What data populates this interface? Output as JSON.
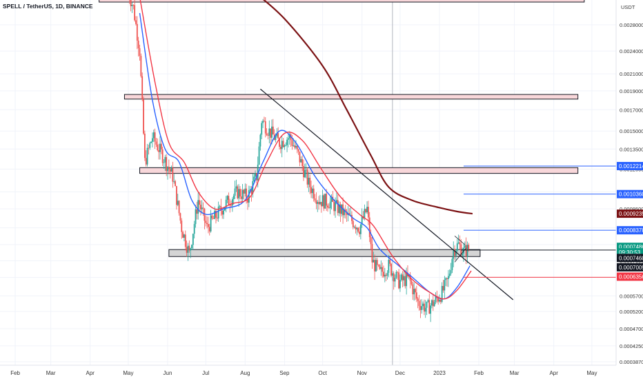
{
  "header": {
    "symbol_line": "SPELL / TetherUS, 1D, BINANCE"
  },
  "axis": {
    "currency": "USDT",
    "scale": "log"
  },
  "colors": {
    "candle_up": "#26a69a",
    "candle_down": "#ef5350",
    "ema_fast": "#2962ff",
    "ema_slow": "#f23645",
    "ma_long": "#7b1113",
    "trendline": "#131722",
    "zone_fill": "#f8d7da",
    "zone_grey": "#d5d5d5",
    "level_blue": "#2962ff",
    "level_red": "#f23645"
  },
  "chart_data": {
    "type": "line",
    "title": "SPELL / TetherUS, 1D, BINANCE",
    "x_labels": [
      "Feb",
      "Mar",
      "Apr",
      "May",
      "Jun",
      "Jul",
      "Aug",
      "Sep",
      "Oct",
      "Nov",
      "Dec",
      "2023",
      "Feb",
      "Mar",
      "Apr",
      "May"
    ],
    "y_ticks": [
      "0.0028000",
      "0.0024000",
      "0.0021000",
      "0.0019000",
      "0.0017000",
      "0.0015000",
      "0.0013500",
      "0.0012000",
      "0.0010500",
      "0.0009500",
      "0.0008500",
      "0.0007700",
      "0.0007000",
      "0.0006350",
      "0.0005700",
      "0.0005200",
      "0.0004700",
      "0.0004250",
      "0.0003870"
    ],
    "ylim": [
      0.00037,
      0.0034
    ],
    "grid": true,
    "series": [
      {
        "kind": "price_approx",
        "x": [
          "2022-05-01",
          "2022-05-05",
          "2022-05-10",
          "2022-05-14",
          "2022-05-20",
          "2022-05-28",
          "2022-06-05",
          "2022-06-12",
          "2022-06-18",
          "2022-06-25",
          "2022-07-02",
          "2022-07-10",
          "2022-07-18",
          "2022-07-26",
          "2022-08-03",
          "2022-08-10",
          "2022-08-14",
          "2022-08-20",
          "2022-08-28",
          "2022-09-05",
          "2022-09-12",
          "2022-09-20",
          "2022-09-28",
          "2022-10-06",
          "2022-10-14",
          "2022-10-22",
          "2022-10-30",
          "2022-11-05",
          "2022-11-09",
          "2022-11-15",
          "2022-11-22",
          "2022-11-30",
          "2022-12-08",
          "2022-12-15",
          "2022-12-22",
          "2022-12-28",
          "2023-01-03",
          "2023-01-08",
          "2023-01-12",
          "2023-01-16",
          "2023-01-20",
          "2023-01-24"
        ],
        "y": [
          0.0034,
          0.0031,
          0.0024,
          0.00125,
          0.00145,
          0.0013,
          0.00115,
          0.00085,
          0.00073,
          0.001,
          0.00085,
          0.00092,
          0.00099,
          0.00105,
          0.00102,
          0.00115,
          0.0016,
          0.0015,
          0.0014,
          0.00145,
          0.0013,
          0.0011,
          0.001,
          0.00099,
          0.00095,
          0.0009,
          0.00085,
          0.00095,
          0.0007,
          0.00065,
          0.00068,
          0.00062,
          0.00063,
          0.00055,
          0.00053,
          0.00055,
          0.00058,
          0.00063,
          0.00075,
          0.00077,
          0.00074,
          0.00075
        ]
      },
      {
        "name": "",
        "kind": "ma_long",
        "x": [
          "2022-08-08",
          "2022-09-01",
          "2022-10-01",
          "2022-10-20",
          "2022-11-08",
          "2022-11-22",
          "2022-12-10",
          "2022-12-30",
          "2023-01-15",
          "2023-01-27"
        ],
        "y": [
          0.0034,
          0.0029,
          0.0022,
          0.0017,
          0.0013,
          0.00108,
          0.001,
          0.00096,
          0.000935,
          0.0009235
        ]
      },
      {
        "kind": "ema_fast",
        "x": [
          "2022-05-10",
          "2022-05-20",
          "2022-05-30",
          "2022-06-10",
          "2022-06-20",
          "2022-07-01",
          "2022-07-15",
          "2022-08-01",
          "2022-08-15",
          "2022-08-28",
          "2022-09-10",
          "2022-09-25",
          "2022-10-10",
          "2022-10-25",
          "2022-11-05",
          "2022-11-15",
          "2022-11-30",
          "2022-12-12",
          "2022-12-25",
          "2023-01-05",
          "2023-01-15",
          "2023-01-25"
        ],
        "y": [
          0.003,
          0.0018,
          0.00135,
          0.00125,
          0.001,
          0.00092,
          0.00095,
          0.001,
          0.00125,
          0.0015,
          0.0014,
          0.00115,
          0.001,
          0.0009,
          0.00085,
          0.00075,
          0.00068,
          0.00063,
          0.00058,
          0.00056,
          0.0006,
          0.00068
        ]
      },
      {
        "kind": "ema_slow",
        "x": [
          "2022-05-10",
          "2022-05-22",
          "2022-06-02",
          "2022-06-14",
          "2022-06-25",
          "2022-07-08",
          "2022-07-22",
          "2022-08-05",
          "2022-08-18",
          "2022-09-01",
          "2022-09-15",
          "2022-09-30",
          "2022-10-15",
          "2022-10-30",
          "2022-11-10",
          "2022-11-25",
          "2022-12-10",
          "2022-12-25",
          "2023-01-05",
          "2023-01-15",
          "2023-01-26"
        ],
        "y": [
          0.0033,
          0.002,
          0.0014,
          0.00125,
          0.00105,
          0.00095,
          0.00098,
          0.00102,
          0.00125,
          0.00148,
          0.00142,
          0.0012,
          0.00102,
          0.00092,
          0.00086,
          0.00072,
          0.00063,
          0.00058,
          0.00056,
          0.00059,
          0.00066
        ]
      }
    ],
    "annotations": {
      "zones": [
        {
          "from": "2022-04-08",
          "to": "2023-04-25",
          "y_top": 0.0034,
          "y_bottom": 0.0032,
          "style": "pink"
        },
        {
          "from": "2022-04-28",
          "to": "2023-04-20",
          "y_top": 0.00186,
          "y_bottom": 0.00181,
          "style": "pink"
        },
        {
          "from": "2022-05-10",
          "to": "2023-04-20",
          "y_top": 0.00121,
          "y_bottom": 0.00117,
          "style": "pink"
        },
        {
          "from": "2022-06-02",
          "to": "2023-02-02",
          "y_top": 0.000748,
          "y_bottom": 0.000718,
          "style": "grey"
        }
      ],
      "trendlines": [
        {
          "x": [
            "2022-08-13",
            "2023-02-28"
          ],
          "y": [
            0.00192,
            0.000557
          ]
        },
        {
          "x": [
            "2023-01-13",
            "2023-01-21"
          ],
          "y": [
            0.00081,
            0.00077
          ]
        },
        {
          "x": [
            "2023-01-13",
            "2023-01-22"
          ],
          "y": [
            0.000695,
            0.000755
          ]
        }
      ],
      "levels": [
        {
          "price": "0.0012214",
          "from": "2023-01-20",
          "style": "blue"
        },
        {
          "price": "0.0010360",
          "from": "2023-01-20",
          "style": "blue"
        },
        {
          "price": "0.0008378",
          "from": "2023-01-20",
          "style": "blue"
        },
        {
          "price": "0.0006356",
          "from": "2023-01-20",
          "style": "red"
        },
        {
          "price": "0.0007460",
          "from": "2023-01-18",
          "style": "dark"
        }
      ],
      "vline": "2022-11-25"
    },
    "price_badges": [
      {
        "text": "0.0012214",
        "y": 0.0012214,
        "style": "blue"
      },
      {
        "text": "0.0010360",
        "y": 0.001036,
        "style": "blue"
      },
      {
        "text": "0.0009235",
        "y": 0.0009235,
        "style": "maroon"
      },
      {
        "text": "0.0008378",
        "y": 0.0008378,
        "style": "blue"
      },
      {
        "text": "0.0007486",
        "y": 0.00076,
        "style": "green"
      },
      {
        "text": "09:30:53",
        "y": 0.000736,
        "style": "green"
      },
      {
        "text": "0.0007460",
        "y": 0.000712,
        "style": "black"
      },
      {
        "text": "0.0007009",
        "y": 0.000674,
        "style": "black"
      },
      {
        "text": "0.0006356",
        "y": 0.000638,
        "style": "red"
      }
    ]
  }
}
